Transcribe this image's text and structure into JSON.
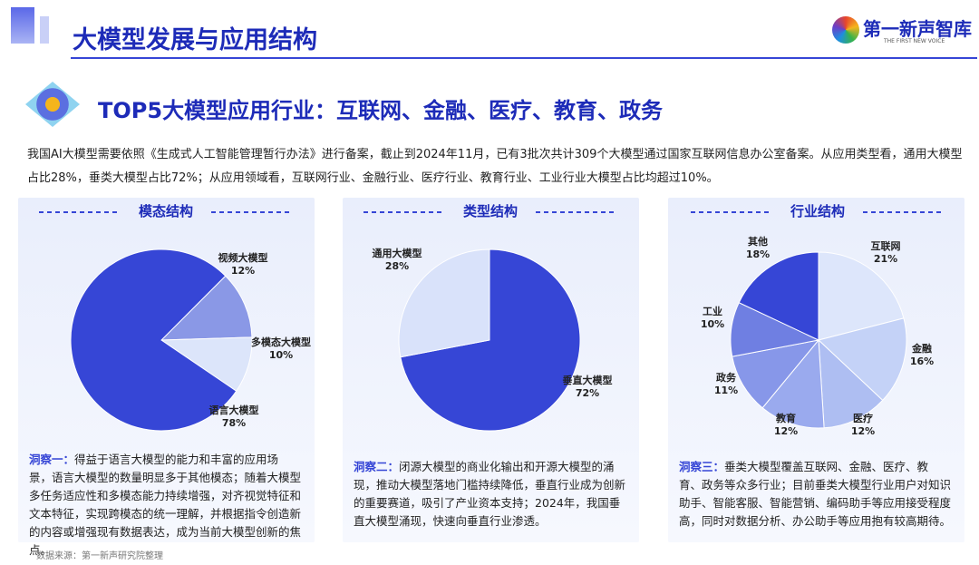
{
  "header": {
    "title": "大模型发展与应用结构",
    "logo": "第一新声智库",
    "logo_tagline": "THE FIRST NEW VOICE"
  },
  "headline": "TOP5大模型应用行业：互联网、金融、医疗、教育、政务",
  "intro": "我国AI大模型需要依照《生成式人工智能管理暂行办法》进行备案，截止到2024年11月，已有3批次共计309个大模型通过国家互联网信息办公室备案。从应用类型看，通用大模型占比28%，垂类大模型占比72%；从应用领域看，互联网行业、金融行业、医疗行业、教育行业、工业行业大模型占比均超过10%。",
  "chart_data": [
    {
      "type": "pie",
      "title": "模态结构",
      "categories": [
        "视频大模型",
        "多模态大模型",
        "语言大模型"
      ],
      "values": [
        12,
        10,
        78
      ],
      "value_labels": [
        "12%",
        "10%",
        "78%"
      ],
      "colors": [
        "#8a98e6",
        "#dce5fa",
        "#3646d6"
      ]
    },
    {
      "type": "pie",
      "title": "类型结构",
      "categories": [
        "垂直大模型",
        "通用大模型"
      ],
      "values": [
        72,
        28
      ],
      "value_labels": [
        "72%",
        "28%"
      ],
      "colors": [
        "#3646d6",
        "#d9e2fa"
      ]
    },
    {
      "type": "pie",
      "title": "行业结构",
      "categories": [
        "互联网",
        "金融",
        "医疗",
        "教育",
        "政务",
        "工业",
        "其他"
      ],
      "values": [
        21,
        16,
        12,
        12,
        11,
        10,
        18
      ],
      "value_labels": [
        "21%",
        "16%",
        "12%",
        "12%",
        "11%",
        "10%",
        "18%"
      ],
      "colors": [
        "#dde6fb",
        "#c4d2f7",
        "#aebef2",
        "#9aaaee",
        "#8797e9",
        "#6f7fe2",
        "#3646d6"
      ]
    }
  ],
  "insights": [
    {
      "label": "洞察一：",
      "text": "得益于语言大模型的能力和丰富的应用场景，语言大模型的数量明显多于其他模态；随着大模型多任务适应性和多模态能力持续增强，对齐视觉特征和文本特征，实现跨模态的统一理解，并根据指令创造新的内容或增强现有数据表达，成为当前大模型创新的焦点。"
    },
    {
      "label": "洞察二：",
      "text": "闭源大模型的商业化输出和开源大模型的涌现，推动大模型落地门槛持续降低，垂直行业成为创新的重要赛道，吸引了产业资本支持；2024年，我国垂直大模型涌现，快速向垂直行业渗透。"
    },
    {
      "label": "洞察三：",
      "text": "垂类大模型覆盖互联网、金融、医疗、教育、政务等众多行业；目前垂类大模型行业用户对知识助手、智能客服、智能营销、编码助手等应用接受程度高，同时对数据分析、办公助手等应用抱有较高期待。"
    }
  ],
  "source": "数据来源：第一新声研究院整理"
}
